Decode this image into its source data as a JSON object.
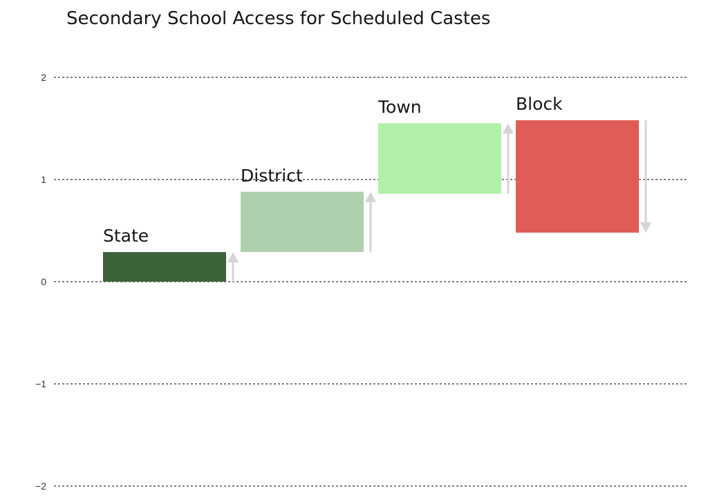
{
  "chart_data": {
    "type": "waterfall",
    "title": "Secondary School Access for Scheduled Castes",
    "xlabel": "",
    "ylabel": "",
    "ylim": [
      -2,
      2
    ],
    "yticks": [
      2,
      1,
      0,
      -1,
      -2
    ],
    "ytick_labels": [
      "2",
      "1",
      "0",
      "−1",
      "−2"
    ],
    "grid": true,
    "categories": [
      "State",
      "District",
      "Town",
      "Block"
    ],
    "bars": [
      {
        "label": "State",
        "start": 0,
        "end": 0.29,
        "direction": "up",
        "color": "#3c6339"
      },
      {
        "label": "District",
        "start": 0.29,
        "end": 0.88,
        "direction": "up",
        "color": "#afd0af"
      },
      {
        "label": "Town",
        "start": 0.86,
        "end": 1.55,
        "direction": "up",
        "color": "#b0f0a8"
      },
      {
        "label": "Block",
        "start": 1.58,
        "end": 0.48,
        "direction": "down",
        "color": "#e05c56"
      }
    ],
    "arrow_color": "#d4d4d4"
  }
}
